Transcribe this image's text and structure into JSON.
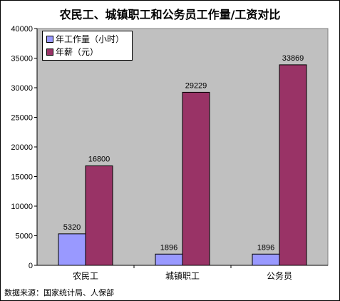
{
  "title": "农民工、城镇职工和公务员工作量/工资对比",
  "source_note": "数据来源：国家统计局、人保部",
  "colors": {
    "plot_bg": "#c0c0c0",
    "series1": "#9999ff",
    "series2": "#993366"
  },
  "chart_data": {
    "type": "bar",
    "categories": [
      "农民工",
      "城镇职工",
      "公务员"
    ],
    "series": [
      {
        "name": "年工作量（小时）",
        "values": [
          5320,
          1896,
          1896
        ],
        "color": "#9999ff"
      },
      {
        "name": "年薪（元）",
        "values": [
          16800,
          29229,
          33869
        ],
        "color": "#993366"
      }
    ],
    "ylim": [
      0,
      40000
    ],
    "yticks": [
      0,
      5000,
      10000,
      15000,
      20000,
      25000,
      30000,
      35000,
      40000
    ],
    "ytick_labels": [
      "0",
      "5000",
      "10000",
      "15000",
      "20000",
      "25000",
      "30000",
      "35000",
      "40000"
    ],
    "grid": false,
    "legend": "top-left"
  }
}
